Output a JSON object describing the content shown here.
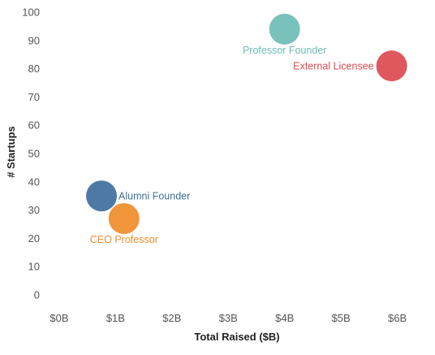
{
  "chart_data": {
    "type": "scatter",
    "title": "",
    "xlabel": "Total Raised ($B)",
    "ylabel": "# Startups",
    "xlim": [
      -0.1,
      6.15
    ],
    "ylim": [
      -2,
      100
    ],
    "x_ticks": [
      {
        "value": 0,
        "label": "$0B"
      },
      {
        "value": 1,
        "label": "$1B"
      },
      {
        "value": 2,
        "label": "$2B"
      },
      {
        "value": 3,
        "label": "$3B"
      },
      {
        "value": 4,
        "label": "$4B"
      },
      {
        "value": 5,
        "label": "$5B"
      },
      {
        "value": 6,
        "label": "$6B"
      }
    ],
    "y_ticks": [
      {
        "value": 0,
        "label": "0"
      },
      {
        "value": 10,
        "label": "10"
      },
      {
        "value": 20,
        "label": "20"
      },
      {
        "value": 30,
        "label": "30"
      },
      {
        "value": 40,
        "label": "40"
      },
      {
        "value": 50,
        "label": "50"
      },
      {
        "value": 60,
        "label": "60"
      },
      {
        "value": 70,
        "label": "70"
      },
      {
        "value": 80,
        "label": "80"
      },
      {
        "value": 90,
        "label": "90"
      },
      {
        "value": 100,
        "label": "100"
      }
    ],
    "grid": false,
    "legend": "none",
    "points": [
      {
        "name": "Professor Founder",
        "x": 4.0,
        "y": 94,
        "color": "#6FBCB6",
        "label_position": "below"
      },
      {
        "name": "External Licensee",
        "x": 5.9,
        "y": 81,
        "color": "#DB4A50",
        "label_position": "left"
      },
      {
        "name": "Alumni Founder",
        "x": 0.75,
        "y": 35,
        "color": "#3F6E9E",
        "label_position": "right"
      },
      {
        "name": "CEO Professor",
        "x": 1.15,
        "y": 27,
        "color": "#F08C2A",
        "label_position": "below"
      }
    ]
  }
}
